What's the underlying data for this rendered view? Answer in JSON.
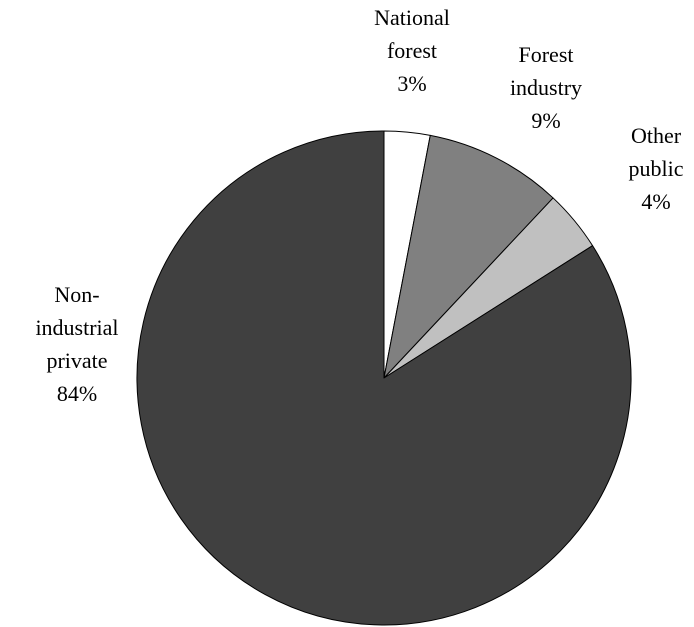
{
  "chart_data": {
    "type": "pie",
    "title": "",
    "start_angle_deg": 0,
    "direction": "clockwise",
    "legend": "none",
    "slices": [
      {
        "id": "national-forest",
        "label_lines": [
          "National",
          "forest"
        ],
        "value": 3,
        "value_label": "3%",
        "color": "#FFFFFF"
      },
      {
        "id": "forest-industry",
        "label_lines": [
          "Forest",
          "industry"
        ],
        "value": 9,
        "value_label": "9%",
        "color": "#808080"
      },
      {
        "id": "other-public",
        "label_lines": [
          "Other",
          "public"
        ],
        "value": 4,
        "value_label": "4%",
        "color": "#C0C0C0"
      },
      {
        "id": "non-industrial-private",
        "label_lines": [
          "Non-",
          "industrial",
          "private"
        ],
        "value": 84,
        "value_label": "84%",
        "color": "#404040"
      }
    ]
  }
}
